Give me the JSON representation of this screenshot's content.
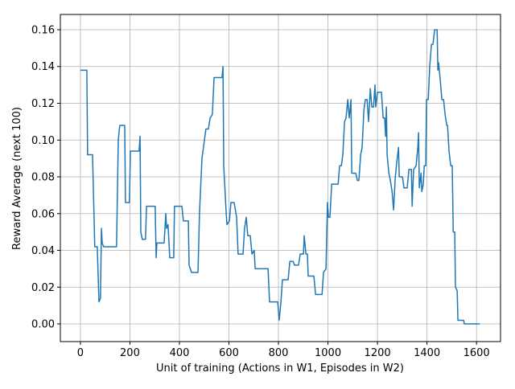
{
  "chart_data": {
    "type": "line",
    "x_label": "Unit of training (Actions in W1, Episodes in W2)",
    "y_label": "Reward Average (next 100)",
    "x": [
      0,
      26,
      29,
      49,
      58,
      68,
      75,
      81,
      85,
      88,
      94,
      146,
      153,
      159,
      179,
      182,
      198,
      202,
      237,
      241,
      244,
      250,
      263,
      267,
      302,
      306,
      309,
      338,
      345,
      348,
      354,
      361,
      377,
      380,
      410,
      416,
      436,
      439,
      449,
      475,
      481,
      491,
      501,
      507,
      517,
      524,
      533,
      540,
      572,
      576,
      579,
      589,
      592,
      602,
      608,
      621,
      631,
      637,
      657,
      663,
      670,
      676,
      686,
      693,
      702,
      706,
      758,
      764,
      797,
      803,
      810,
      816,
      839,
      846,
      859,
      865,
      881,
      888,
      901,
      904,
      911,
      917,
      920,
      943,
      950,
      976,
      982,
      992,
      998,
      1002,
      1008,
      1015,
      1041,
      1047,
      1054,
      1060,
      1067,
      1073,
      1080,
      1086,
      1093,
      1096,
      1112,
      1119,
      1125,
      1132,
      1138,
      1145,
      1151,
      1158,
      1164,
      1171,
      1177,
      1184,
      1190,
      1193,
      1200,
      1216,
      1223,
      1229,
      1233,
      1236,
      1239,
      1246,
      1252,
      1259,
      1265,
      1272,
      1278,
      1285,
      1288,
      1301,
      1307,
      1320,
      1327,
      1337,
      1340,
      1346,
      1356,
      1363,
      1366,
      1369,
      1376,
      1379,
      1385,
      1389,
      1395,
      1398,
      1405,
      1411,
      1418,
      1424,
      1431,
      1441,
      1444,
      1447,
      1454,
      1460,
      1467,
      1473,
      1480,
      1483,
      1489,
      1496,
      1502,
      1506,
      1512,
      1515,
      1522,
      1525,
      1548,
      1551,
      1613
    ],
    "series": [
      {
        "color": "#1f77b4",
        "values": [
          0.138,
          0.138,
          0.092,
          0.092,
          0.042,
          0.042,
          0.012,
          0.014,
          0.052,
          0.044,
          0.042,
          0.042,
          0.1,
          0.108,
          0.108,
          0.066,
          0.066,
          0.094,
          0.094,
          0.102,
          0.05,
          0.046,
          0.046,
          0.064,
          0.064,
          0.036,
          0.044,
          0.044,
          0.06,
          0.052,
          0.054,
          0.036,
          0.036,
          0.064,
          0.064,
          0.056,
          0.056,
          0.032,
          0.028,
          0.028,
          0.06,
          0.09,
          0.1,
          0.106,
          0.106,
          0.112,
          0.114,
          0.134,
          0.134,
          0.14,
          0.086,
          0.06,
          0.054,
          0.056,
          0.066,
          0.066,
          0.058,
          0.038,
          0.038,
          0.052,
          0.058,
          0.048,
          0.048,
          0.038,
          0.04,
          0.03,
          0.03,
          0.012,
          0.012,
          0.002,
          0.012,
          0.024,
          0.024,
          0.034,
          0.034,
          0.032,
          0.032,
          0.038,
          0.038,
          0.048,
          0.038,
          0.038,
          0.026,
          0.026,
          0.016,
          0.016,
          0.028,
          0.03,
          0.066,
          0.058,
          0.058,
          0.076,
          0.076,
          0.086,
          0.086,
          0.092,
          0.11,
          0.112,
          0.122,
          0.112,
          0.122,
          0.082,
          0.082,
          0.078,
          0.078,
          0.092,
          0.096,
          0.116,
          0.122,
          0.122,
          0.11,
          0.128,
          0.118,
          0.118,
          0.13,
          0.118,
          0.126,
          0.126,
          0.112,
          0.112,
          0.102,
          0.118,
          0.092,
          0.082,
          0.078,
          0.072,
          0.062,
          0.08,
          0.088,
          0.096,
          0.08,
          0.08,
          0.074,
          0.074,
          0.084,
          0.084,
          0.064,
          0.084,
          0.086,
          0.096,
          0.104,
          0.074,
          0.082,
          0.072,
          0.076,
          0.086,
          0.086,
          0.122,
          0.122,
          0.14,
          0.152,
          0.152,
          0.16,
          0.16,
          0.138,
          0.142,
          0.132,
          0.122,
          0.122,
          0.114,
          0.108,
          0.108,
          0.094,
          0.086,
          0.086,
          0.05,
          0.05,
          0.02,
          0.018,
          0.002,
          0.002,
          0,
          0
        ]
      }
    ],
    "xlim": [
      -81,
      1697
    ],
    "ylim": [
      -0.0096,
      0.1683
    ],
    "xticks": [
      0,
      200,
      400,
      600,
      800,
      1000,
      1200,
      1400,
      1600
    ],
    "yticks": [
      {
        "value": 0,
        "label": "0.00"
      },
      0.02,
      0.04,
      0.06,
      0.08,
      {
        "value": 0.1,
        "label": "0.10"
      },
      0.12,
      0.14,
      0.16
    ],
    "grid": true
  }
}
